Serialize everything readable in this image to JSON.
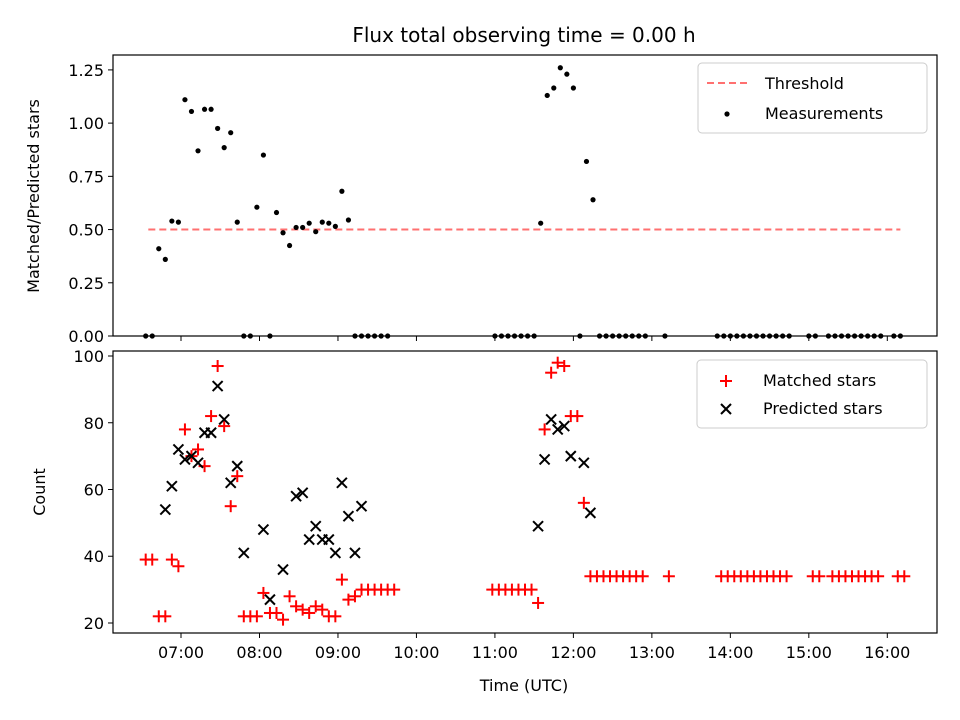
{
  "chart_data": [
    {
      "type": "scatter",
      "title": "Flux total observing time = 0.00 h",
      "xlabel": "",
      "ylabel": "Matched/Predicted stars",
      "ylim": [
        0,
        1.32
      ],
      "yticks": [
        0.0,
        0.25,
        0.5,
        0.75,
        1.0,
        1.25
      ],
      "ytick_labels": [
        "0.00",
        "0.25",
        "0.50",
        "0.75",
        "1.00",
        "1.25"
      ],
      "legend": "top-right",
      "threshold": {
        "name": "Threshold",
        "value": 0.5,
        "x_range": [
          "06:35",
          "16:10"
        ],
        "color": "#ff7070"
      },
      "series": [
        {
          "name": "Measurements",
          "color": "#000000",
          "marker": "dot",
          "points": [
            [
              "06:33",
              0
            ],
            [
              "06:38",
              0
            ],
            [
              "06:43",
              0.41
            ],
            [
              "06:48",
              0.36
            ],
            [
              "06:53",
              0.54
            ],
            [
              "06:58",
              0.535
            ],
            [
              "07:03",
              1.11
            ],
            [
              "07:08",
              1.055
            ],
            [
              "07:13",
              0.87
            ],
            [
              "07:18",
              1.065
            ],
            [
              "07:23",
              1.065
            ],
            [
              "07:28",
              0.975
            ],
            [
              "07:33",
              0.885
            ],
            [
              "07:38",
              0.955
            ],
            [
              "07:43",
              0.535
            ],
            [
              "07:48",
              0
            ],
            [
              "07:53",
              0
            ],
            [
              "07:58",
              0.605
            ],
            [
              "08:03",
              0.85
            ],
            [
              "08:08",
              0
            ],
            [
              "08:13",
              0.58
            ],
            [
              "08:18",
              0.485
            ],
            [
              "08:23",
              0.425
            ],
            [
              "08:28",
              0.51
            ],
            [
              "08:33",
              0.51
            ],
            [
              "08:38",
              0.53
            ],
            [
              "08:43",
              0.49
            ],
            [
              "08:48",
              0.535
            ],
            [
              "08:53",
              0.53
            ],
            [
              "08:58",
              0.515
            ],
            [
              "09:03",
              0.68
            ],
            [
              "09:08",
              0.545
            ],
            [
              "09:13",
              0
            ],
            [
              "09:18",
              0
            ],
            [
              "09:23",
              0
            ],
            [
              "09:28",
              0
            ],
            [
              "09:33",
              0
            ],
            [
              "09:38",
              0
            ],
            [
              "11:00",
              0
            ],
            [
              "11:05",
              0
            ],
            [
              "11:10",
              0
            ],
            [
              "11:15",
              0
            ],
            [
              "11:20",
              0
            ],
            [
              "11:25",
              0
            ],
            [
              "11:30",
              0
            ],
            [
              "11:35",
              0.53
            ],
            [
              "11:40",
              1.13
            ],
            [
              "11:45",
              1.165
            ],
            [
              "11:50",
              1.26
            ],
            [
              "11:55",
              1.23
            ],
            [
              "12:00",
              1.165
            ],
            [
              "12:05",
              0
            ],
            [
              "12:10",
              0.82
            ],
            [
              "12:15",
              0.64
            ],
            [
              "12:20",
              0
            ],
            [
              "12:25",
              0
            ],
            [
              "12:30",
              0
            ],
            [
              "12:35",
              0
            ],
            [
              "12:40",
              0
            ],
            [
              "12:45",
              0
            ],
            [
              "12:50",
              0
            ],
            [
              "12:55",
              0
            ],
            [
              "13:10",
              0
            ],
            [
              "13:50",
              0
            ],
            [
              "13:55",
              0
            ],
            [
              "14:00",
              0
            ],
            [
              "14:05",
              0
            ],
            [
              "14:10",
              0
            ],
            [
              "14:15",
              0
            ],
            [
              "14:20",
              0
            ],
            [
              "14:25",
              0
            ],
            [
              "14:30",
              0
            ],
            [
              "14:35",
              0
            ],
            [
              "14:40",
              0
            ],
            [
              "14:45",
              0
            ],
            [
              "15:00",
              0
            ],
            [
              "15:05",
              0
            ],
            [
              "15:15",
              0
            ],
            [
              "15:20",
              0
            ],
            [
              "15:25",
              0
            ],
            [
              "15:30",
              0
            ],
            [
              "15:35",
              0
            ],
            [
              "15:40",
              0
            ],
            [
              "15:45",
              0
            ],
            [
              "15:50",
              0
            ],
            [
              "15:55",
              0
            ],
            [
              "16:05",
              0
            ],
            [
              "16:10",
              0
            ]
          ]
        }
      ]
    },
    {
      "type": "scatter",
      "title": "",
      "xlabel": "Time (UTC)",
      "ylabel": "Count",
      "xlim": [
        "06:08",
        "16:38"
      ],
      "xticks": [
        "07:00",
        "08:00",
        "09:00",
        "10:00",
        "11:00",
        "12:00",
        "13:00",
        "14:00",
        "15:00",
        "16:00"
      ],
      "ylim": [
        17,
        101.5
      ],
      "yticks": [
        20,
        40,
        60,
        80,
        100
      ],
      "ytick_labels": [
        "20",
        "40",
        "60",
        "80",
        "100"
      ],
      "legend": "top-right",
      "series": [
        {
          "name": "Matched stars",
          "color": "#ff0000",
          "marker": "plus",
          "points": [
            [
              "06:33",
              39
            ],
            [
              "06:38",
              39
            ],
            [
              "06:43",
              22
            ],
            [
              "06:48",
              22
            ],
            [
              "06:53",
              39
            ],
            [
              "06:58",
              37
            ],
            [
              "07:03",
              78
            ],
            [
              "07:08",
              70
            ],
            [
              "07:13",
              72
            ],
            [
              "07:18",
              67
            ],
            [
              "07:23",
              82
            ],
            [
              "07:28",
              97
            ],
            [
              "07:33",
              79
            ],
            [
              "07:38",
              55
            ],
            [
              "07:43",
              64
            ],
            [
              "07:48",
              22
            ],
            [
              "07:53",
              22
            ],
            [
              "07:58",
              22
            ],
            [
              "08:03",
              29
            ],
            [
              "08:08",
              23
            ],
            [
              "08:13",
              23
            ],
            [
              "08:18",
              21
            ],
            [
              "08:23",
              28
            ],
            [
              "08:28",
              25
            ],
            [
              "08:33",
              24
            ],
            [
              "08:38",
              23
            ],
            [
              "08:43",
              25
            ],
            [
              "08:48",
              24
            ],
            [
              "08:53",
              22
            ],
            [
              "08:58",
              22
            ],
            [
              "09:03",
              33
            ],
            [
              "09:08",
              27
            ],
            [
              "09:13",
              28
            ],
            [
              "09:18",
              30
            ],
            [
              "09:23",
              30
            ],
            [
              "09:28",
              30
            ],
            [
              "09:33",
              30
            ],
            [
              "09:38",
              30
            ],
            [
              "09:43",
              30
            ],
            [
              "10:58",
              30
            ],
            [
              "11:03",
              30
            ],
            [
              "11:08",
              30
            ],
            [
              "11:13",
              30
            ],
            [
              "11:18",
              30
            ],
            [
              "11:23",
              30
            ],
            [
              "11:28",
              30
            ],
            [
              "11:33",
              26
            ],
            [
              "11:38",
              78
            ],
            [
              "11:43",
              95
            ],
            [
              "11:48",
              98
            ],
            [
              "11:53",
              97
            ],
            [
              "11:58",
              82
            ],
            [
              "12:03",
              82
            ],
            [
              "12:08",
              56
            ],
            [
              "12:13",
              34
            ],
            [
              "12:18",
              34
            ],
            [
              "12:23",
              34
            ],
            [
              "12:28",
              34
            ],
            [
              "12:33",
              34
            ],
            [
              "12:38",
              34
            ],
            [
              "12:43",
              34
            ],
            [
              "12:48",
              34
            ],
            [
              "12:53",
              34
            ],
            [
              "13:13",
              34
            ],
            [
              "13:53",
              34
            ],
            [
              "13:58",
              34
            ],
            [
              "14:03",
              34
            ],
            [
              "14:08",
              34
            ],
            [
              "14:13",
              34
            ],
            [
              "14:18",
              34
            ],
            [
              "14:23",
              34
            ],
            [
              "14:28",
              34
            ],
            [
              "14:33",
              34
            ],
            [
              "14:38",
              34
            ],
            [
              "14:43",
              34
            ],
            [
              "15:03",
              34
            ],
            [
              "15:08",
              34
            ],
            [
              "15:18",
              34
            ],
            [
              "15:23",
              34
            ],
            [
              "15:28",
              34
            ],
            [
              "15:33",
              34
            ],
            [
              "15:38",
              34
            ],
            [
              "15:43",
              34
            ],
            [
              "15:48",
              34
            ],
            [
              "15:53",
              34
            ],
            [
              "16:08",
              34
            ],
            [
              "16:13",
              34
            ]
          ]
        },
        {
          "name": "Predicted stars",
          "color": "#000000",
          "marker": "x",
          "points": [
            [
              "06:48",
              54
            ],
            [
              "06:53",
              61
            ],
            [
              "06:58",
              72
            ],
            [
              "07:03",
              69
            ],
            [
              "07:08",
              70
            ],
            [
              "07:13",
              68
            ],
            [
              "07:18",
              77
            ],
            [
              "07:23",
              77
            ],
            [
              "07:28",
              91
            ],
            [
              "07:33",
              81
            ],
            [
              "07:38",
              62
            ],
            [
              "07:43",
              67
            ],
            [
              "07:48",
              41
            ],
            [
              "08:03",
              48
            ],
            [
              "08:08",
              27
            ],
            [
              "08:18",
              36
            ],
            [
              "08:28",
              58
            ],
            [
              "08:33",
              59
            ],
            [
              "08:38",
              45
            ],
            [
              "08:43",
              49
            ],
            [
              "08:48",
              45
            ],
            [
              "08:53",
              45
            ],
            [
              "08:58",
              41
            ],
            [
              "09:03",
              62
            ],
            [
              "09:08",
              52
            ],
            [
              "09:13",
              41
            ],
            [
              "09:18",
              55
            ],
            [
              "11:33",
              49
            ],
            [
              "11:38",
              69
            ],
            [
              "11:43",
              81
            ],
            [
              "11:48",
              78
            ],
            [
              "11:53",
              79
            ],
            [
              "11:58",
              70
            ],
            [
              "12:08",
              68
            ],
            [
              "12:13",
              53
            ]
          ]
        }
      ]
    }
  ]
}
